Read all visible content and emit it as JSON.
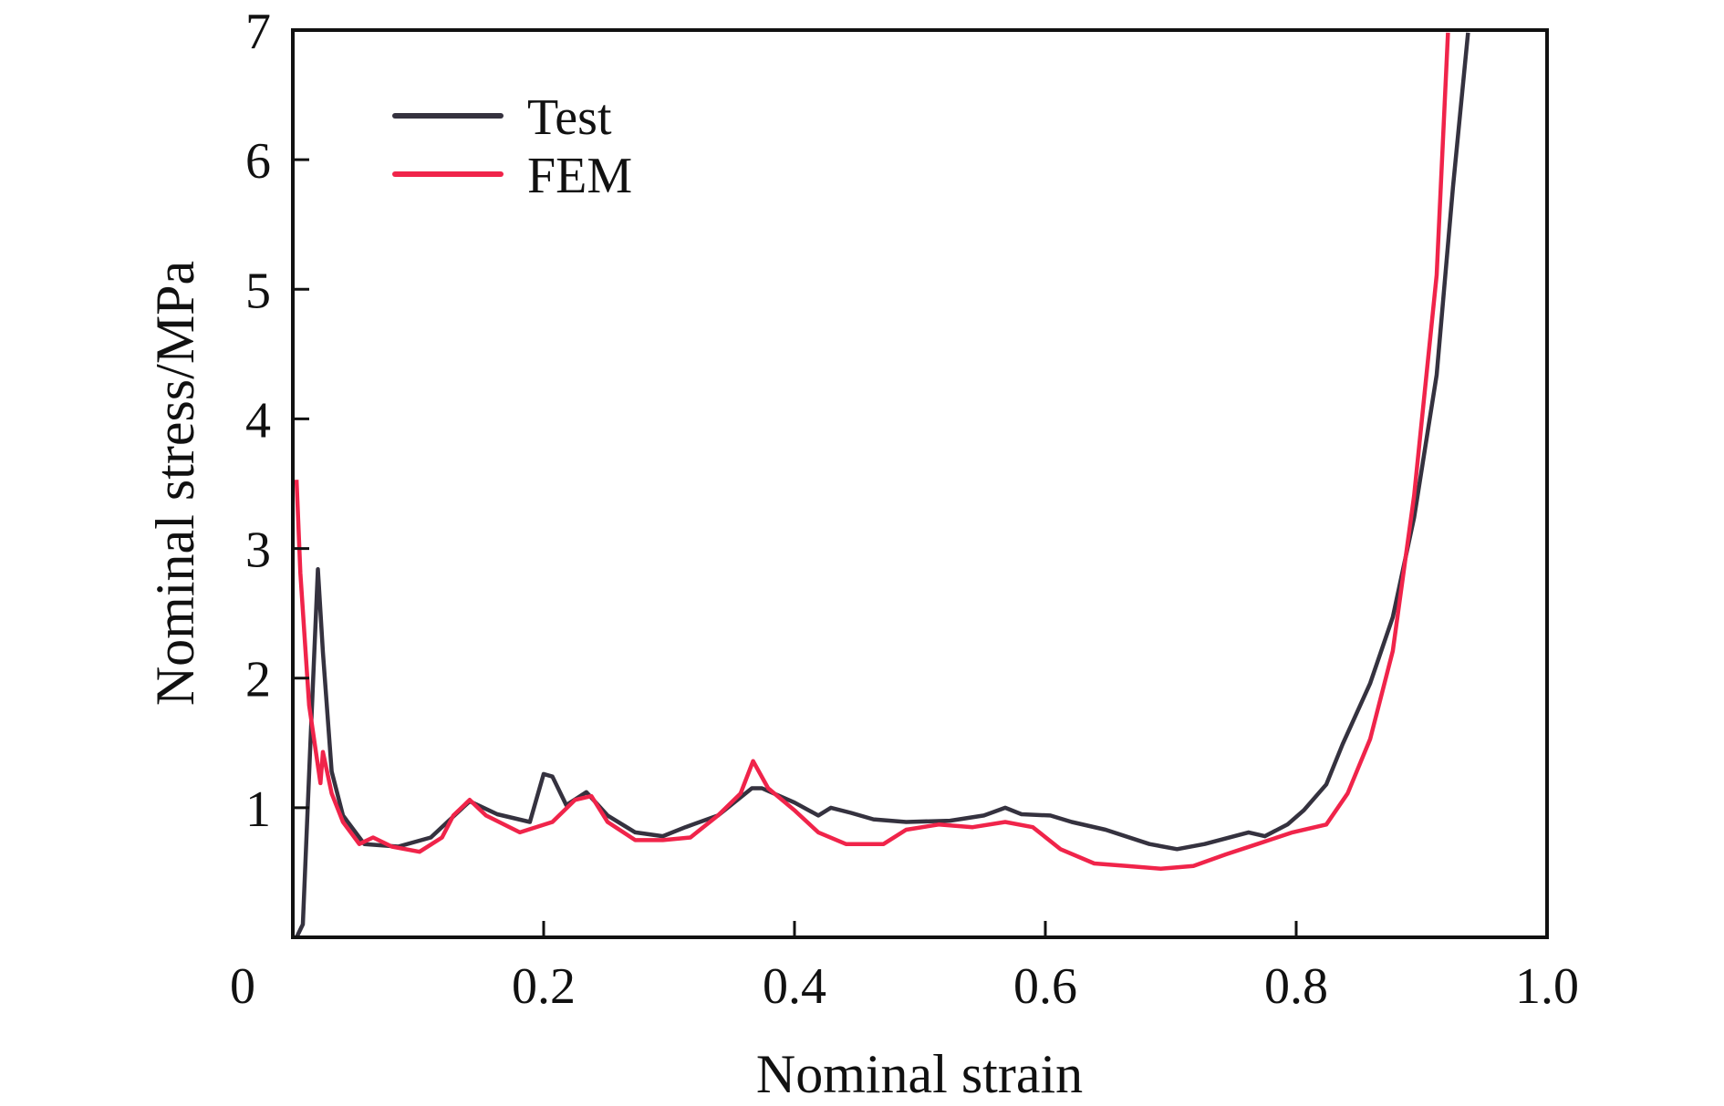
{
  "chart_data": {
    "type": "line",
    "title": "",
    "xlabel": "Nominal strain",
    "ylabel": "Nominal stress/MPa",
    "xlim": [
      0,
      1.0
    ],
    "ylim": [
      0,
      7
    ],
    "x_ticks": [
      "0",
      "0.2",
      "0.4",
      "0.6",
      "0.8",
      "1.0"
    ],
    "x_tick_values": [
      0,
      0.2,
      0.4,
      0.6,
      0.8,
      1.0
    ],
    "y_ticks": [
      "1",
      "2",
      "3",
      "4",
      "5",
      "6",
      "7"
    ],
    "y_tick_values": [
      1,
      2,
      3,
      4,
      5,
      6,
      7
    ],
    "grid": false,
    "legend_position": "top-left",
    "series": [
      {
        "name": "Test",
        "color": "#35323f",
        "x": [
          0.003,
          0.008,
          0.014,
          0.02,
          0.024,
          0.031,
          0.04,
          0.057,
          0.084,
          0.11,
          0.141,
          0.163,
          0.189,
          0.2,
          0.207,
          0.218,
          0.234,
          0.251,
          0.273,
          0.295,
          0.313,
          0.339,
          0.366,
          0.374,
          0.4,
          0.419,
          0.429,
          0.445,
          0.463,
          0.489,
          0.524,
          0.551,
          0.568,
          0.581,
          0.604,
          0.621,
          0.648,
          0.683,
          0.705,
          0.727,
          0.762,
          0.775,
          0.793,
          0.806,
          0.824,
          0.837,
          0.859,
          0.877,
          0.894,
          0.912,
          0.925,
          0.937
        ],
        "y": [
          0,
          0.1,
          1.5,
          2.84,
          2.2,
          1.28,
          0.94,
          0.72,
          0.7,
          0.77,
          1.05,
          0.95,
          0.89,
          1.26,
          1.24,
          1.02,
          1.12,
          0.94,
          0.81,
          0.78,
          0.85,
          0.94,
          1.15,
          1.15,
          1.04,
          0.94,
          1.0,
          0.96,
          0.91,
          0.89,
          0.9,
          0.94,
          1.0,
          0.95,
          0.94,
          0.89,
          0.83,
          0.72,
          0.68,
          0.72,
          0.81,
          0.78,
          0.87,
          0.98,
          1.18,
          1.49,
          1.96,
          2.47,
          3.24,
          4.34,
          5.79,
          6.98
        ]
      },
      {
        "name": "FEM",
        "color": "#f0244a",
        "x": [
          0.003,
          0.006,
          0.013,
          0.022,
          0.024,
          0.031,
          0.04,
          0.053,
          0.064,
          0.079,
          0.101,
          0.119,
          0.128,
          0.141,
          0.154,
          0.181,
          0.207,
          0.225,
          0.238,
          0.251,
          0.273,
          0.295,
          0.317,
          0.339,
          0.357,
          0.367,
          0.379,
          0.4,
          0.419,
          0.441,
          0.471,
          0.489,
          0.515,
          0.542,
          0.568,
          0.59,
          0.612,
          0.639,
          0.665,
          0.692,
          0.718,
          0.744,
          0.769,
          0.797,
          0.824,
          0.841,
          0.859,
          0.877,
          0.894,
          0.912,
          0.921
        ],
        "y": [
          3.53,
          2.81,
          1.79,
          1.19,
          1.43,
          1.11,
          0.89,
          0.72,
          0.77,
          0.7,
          0.66,
          0.77,
          0.94,
          1.06,
          0.94,
          0.81,
          0.89,
          1.06,
          1.09,
          0.89,
          0.75,
          0.75,
          0.77,
          0.94,
          1.11,
          1.36,
          1.15,
          0.98,
          0.81,
          0.72,
          0.72,
          0.83,
          0.87,
          0.85,
          0.89,
          0.85,
          0.68,
          0.57,
          0.55,
          0.53,
          0.55,
          0.64,
          0.72,
          0.81,
          0.87,
          1.11,
          1.53,
          2.21,
          3.41,
          5.11,
          6.98
        ]
      }
    ]
  }
}
